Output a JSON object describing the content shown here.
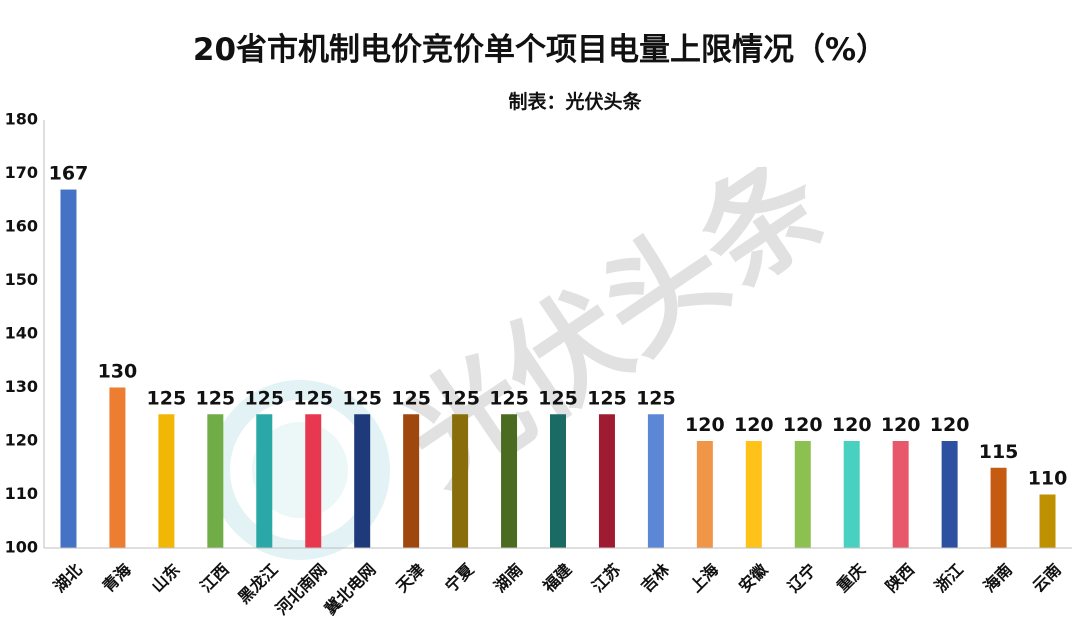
{
  "chart_data": {
    "type": "bar",
    "title": "20省市机制电价竞价单个项目电量上限情况（%）",
    "subtitle": "制表：光伏头条",
    "watermark": "光伏头条",
    "categories": [
      "湖北",
      "青海",
      "山东",
      "江西",
      "黑龙江",
      "河北南网",
      "冀北电网",
      "天津",
      "宁夏",
      "湖南",
      "福建",
      "江苏",
      "吉林",
      "上海",
      "安徽",
      "辽宁",
      "重庆",
      "陕西",
      "浙江",
      "海南",
      "云南"
    ],
    "values": [
      167,
      130,
      125,
      125,
      125,
      125,
      125,
      125,
      125,
      125,
      125,
      125,
      125,
      120,
      120,
      120,
      120,
      120,
      120,
      115,
      110
    ],
    "colors": [
      "#4472c4",
      "#ed7d31",
      "#f2b705",
      "#70ad47",
      "#2aa7a7",
      "#e8384f",
      "#1f3a7a",
      "#9e480e",
      "#8a6d0b",
      "#4a6b20",
      "#1a6b63",
      "#9e1b32",
      "#5b87d6",
      "#f19548",
      "#ffc218",
      "#8cc152",
      "#48d1c0",
      "#e8586b",
      "#2e50a0",
      "#c55a11",
      "#bf9000"
    ],
    "ylim": [
      100,
      180
    ],
    "yticks": [
      100,
      110,
      120,
      130,
      140,
      150,
      160,
      170,
      180
    ],
    "xlabel": "",
    "ylabel": "",
    "grid": false,
    "legend": "none"
  }
}
